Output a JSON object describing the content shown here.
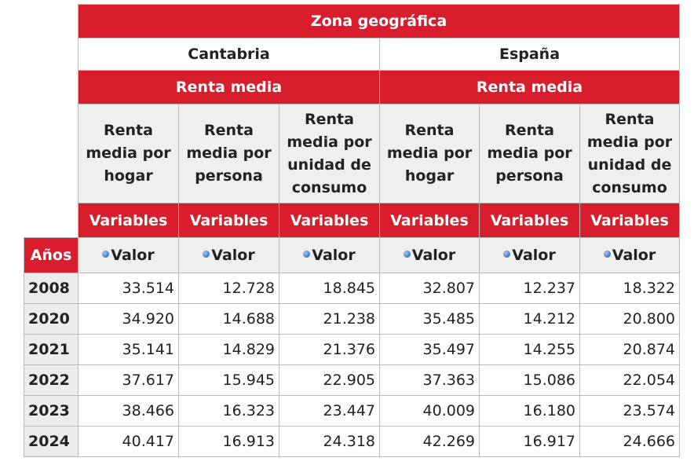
{
  "table": {
    "zone_header": "Zona geográfica",
    "regions": [
      "Cantabria",
      "España"
    ],
    "group_header": "Renta media",
    "measures": [
      "Renta media por hogar",
      "Renta media por persona",
      "Renta media por unidad de consumo"
    ],
    "variables_label": "Variables",
    "years_label": "Años",
    "valor_label": "Valor",
    "rows": [
      {
        "year": "2008",
        "values": [
          "33.514",
          "12.728",
          "18.845",
          "32.807",
          "12.237",
          "18.322"
        ]
      },
      {
        "year": "2020",
        "values": [
          "34.920",
          "14.688",
          "21.238",
          "35.485",
          "14.212",
          "20.800"
        ]
      },
      {
        "year": "2021",
        "values": [
          "35.141",
          "14.829",
          "21.376",
          "35.497",
          "14.255",
          "20.874"
        ]
      },
      {
        "year": "2022",
        "values": [
          "37.617",
          "15.945",
          "22.905",
          "37.363",
          "15.086",
          "22.054"
        ]
      },
      {
        "year": "2023",
        "values": [
          "38.466",
          "16.323",
          "23.447",
          "40.009",
          "16.180",
          "23.574"
        ]
      },
      {
        "year": "2024",
        "values": [
          "40.417",
          "16.913",
          "24.318",
          "42.269",
          "16.917",
          "24.666"
        ]
      }
    ]
  },
  "colors": {
    "header_red": "#d81e2d",
    "header_gray": "#efefef",
    "year_gray": "#ececec",
    "border": "#b8b8b8"
  },
  "icons": {
    "valor_bullet": "blue-dot-icon"
  }
}
